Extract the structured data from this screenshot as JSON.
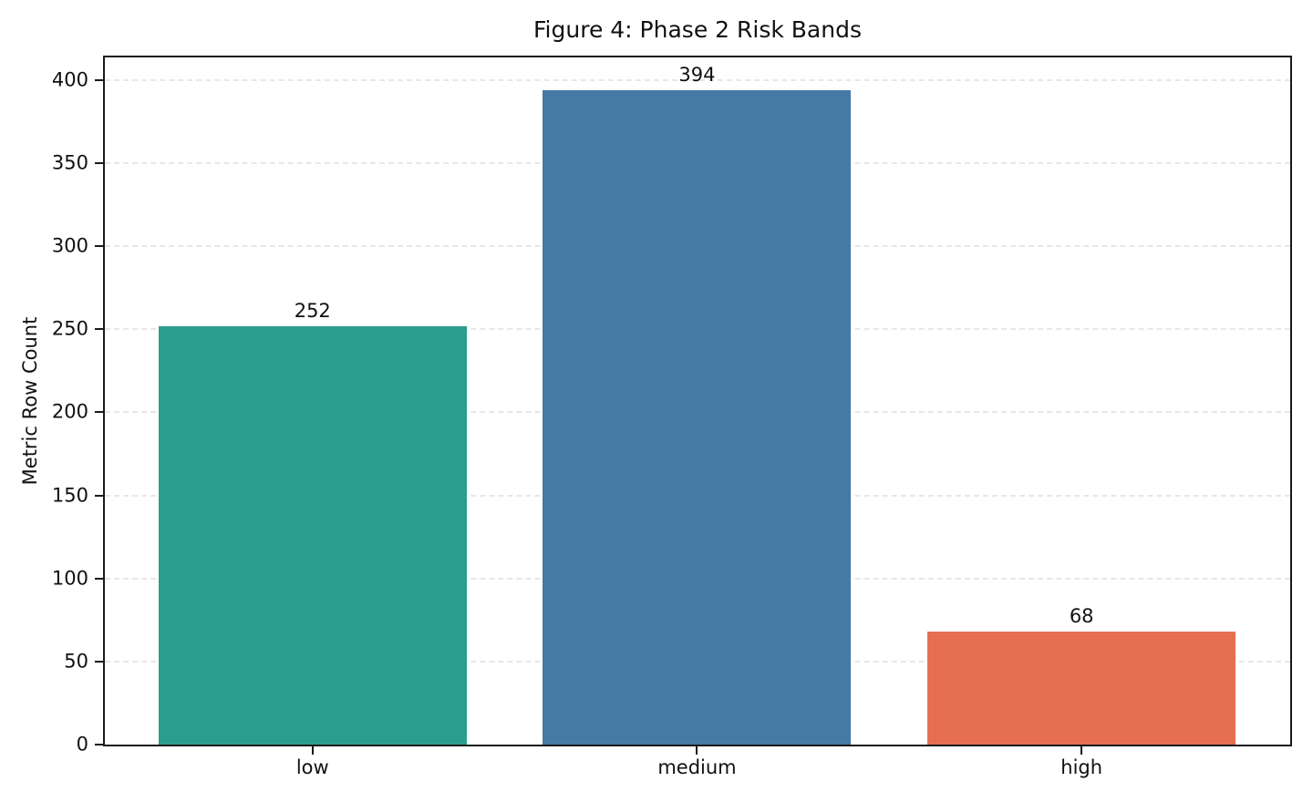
{
  "chart_data": {
    "type": "bar",
    "title": "Figure 4: Phase 2 Risk Bands",
    "xlabel": "",
    "ylabel": "Metric Row Count",
    "categories": [
      "low",
      "medium",
      "high"
    ],
    "values": [
      252,
      394,
      68
    ],
    "value_labels": [
      "252",
      "394",
      "68"
    ],
    "bar_colors": [
      "#2a9d8f",
      "#4679a4",
      "#e76f51"
    ],
    "ylim": [
      0,
      413.6
    ],
    "yticks": [
      0,
      50,
      100,
      150,
      200,
      250,
      300,
      350,
      400
    ],
    "grid": "horizontal-dashed",
    "legend": "none",
    "bar_centers_frac": [
      0.1752,
      0.4996,
      0.824
    ],
    "bar_width_frac": 0.26
  }
}
